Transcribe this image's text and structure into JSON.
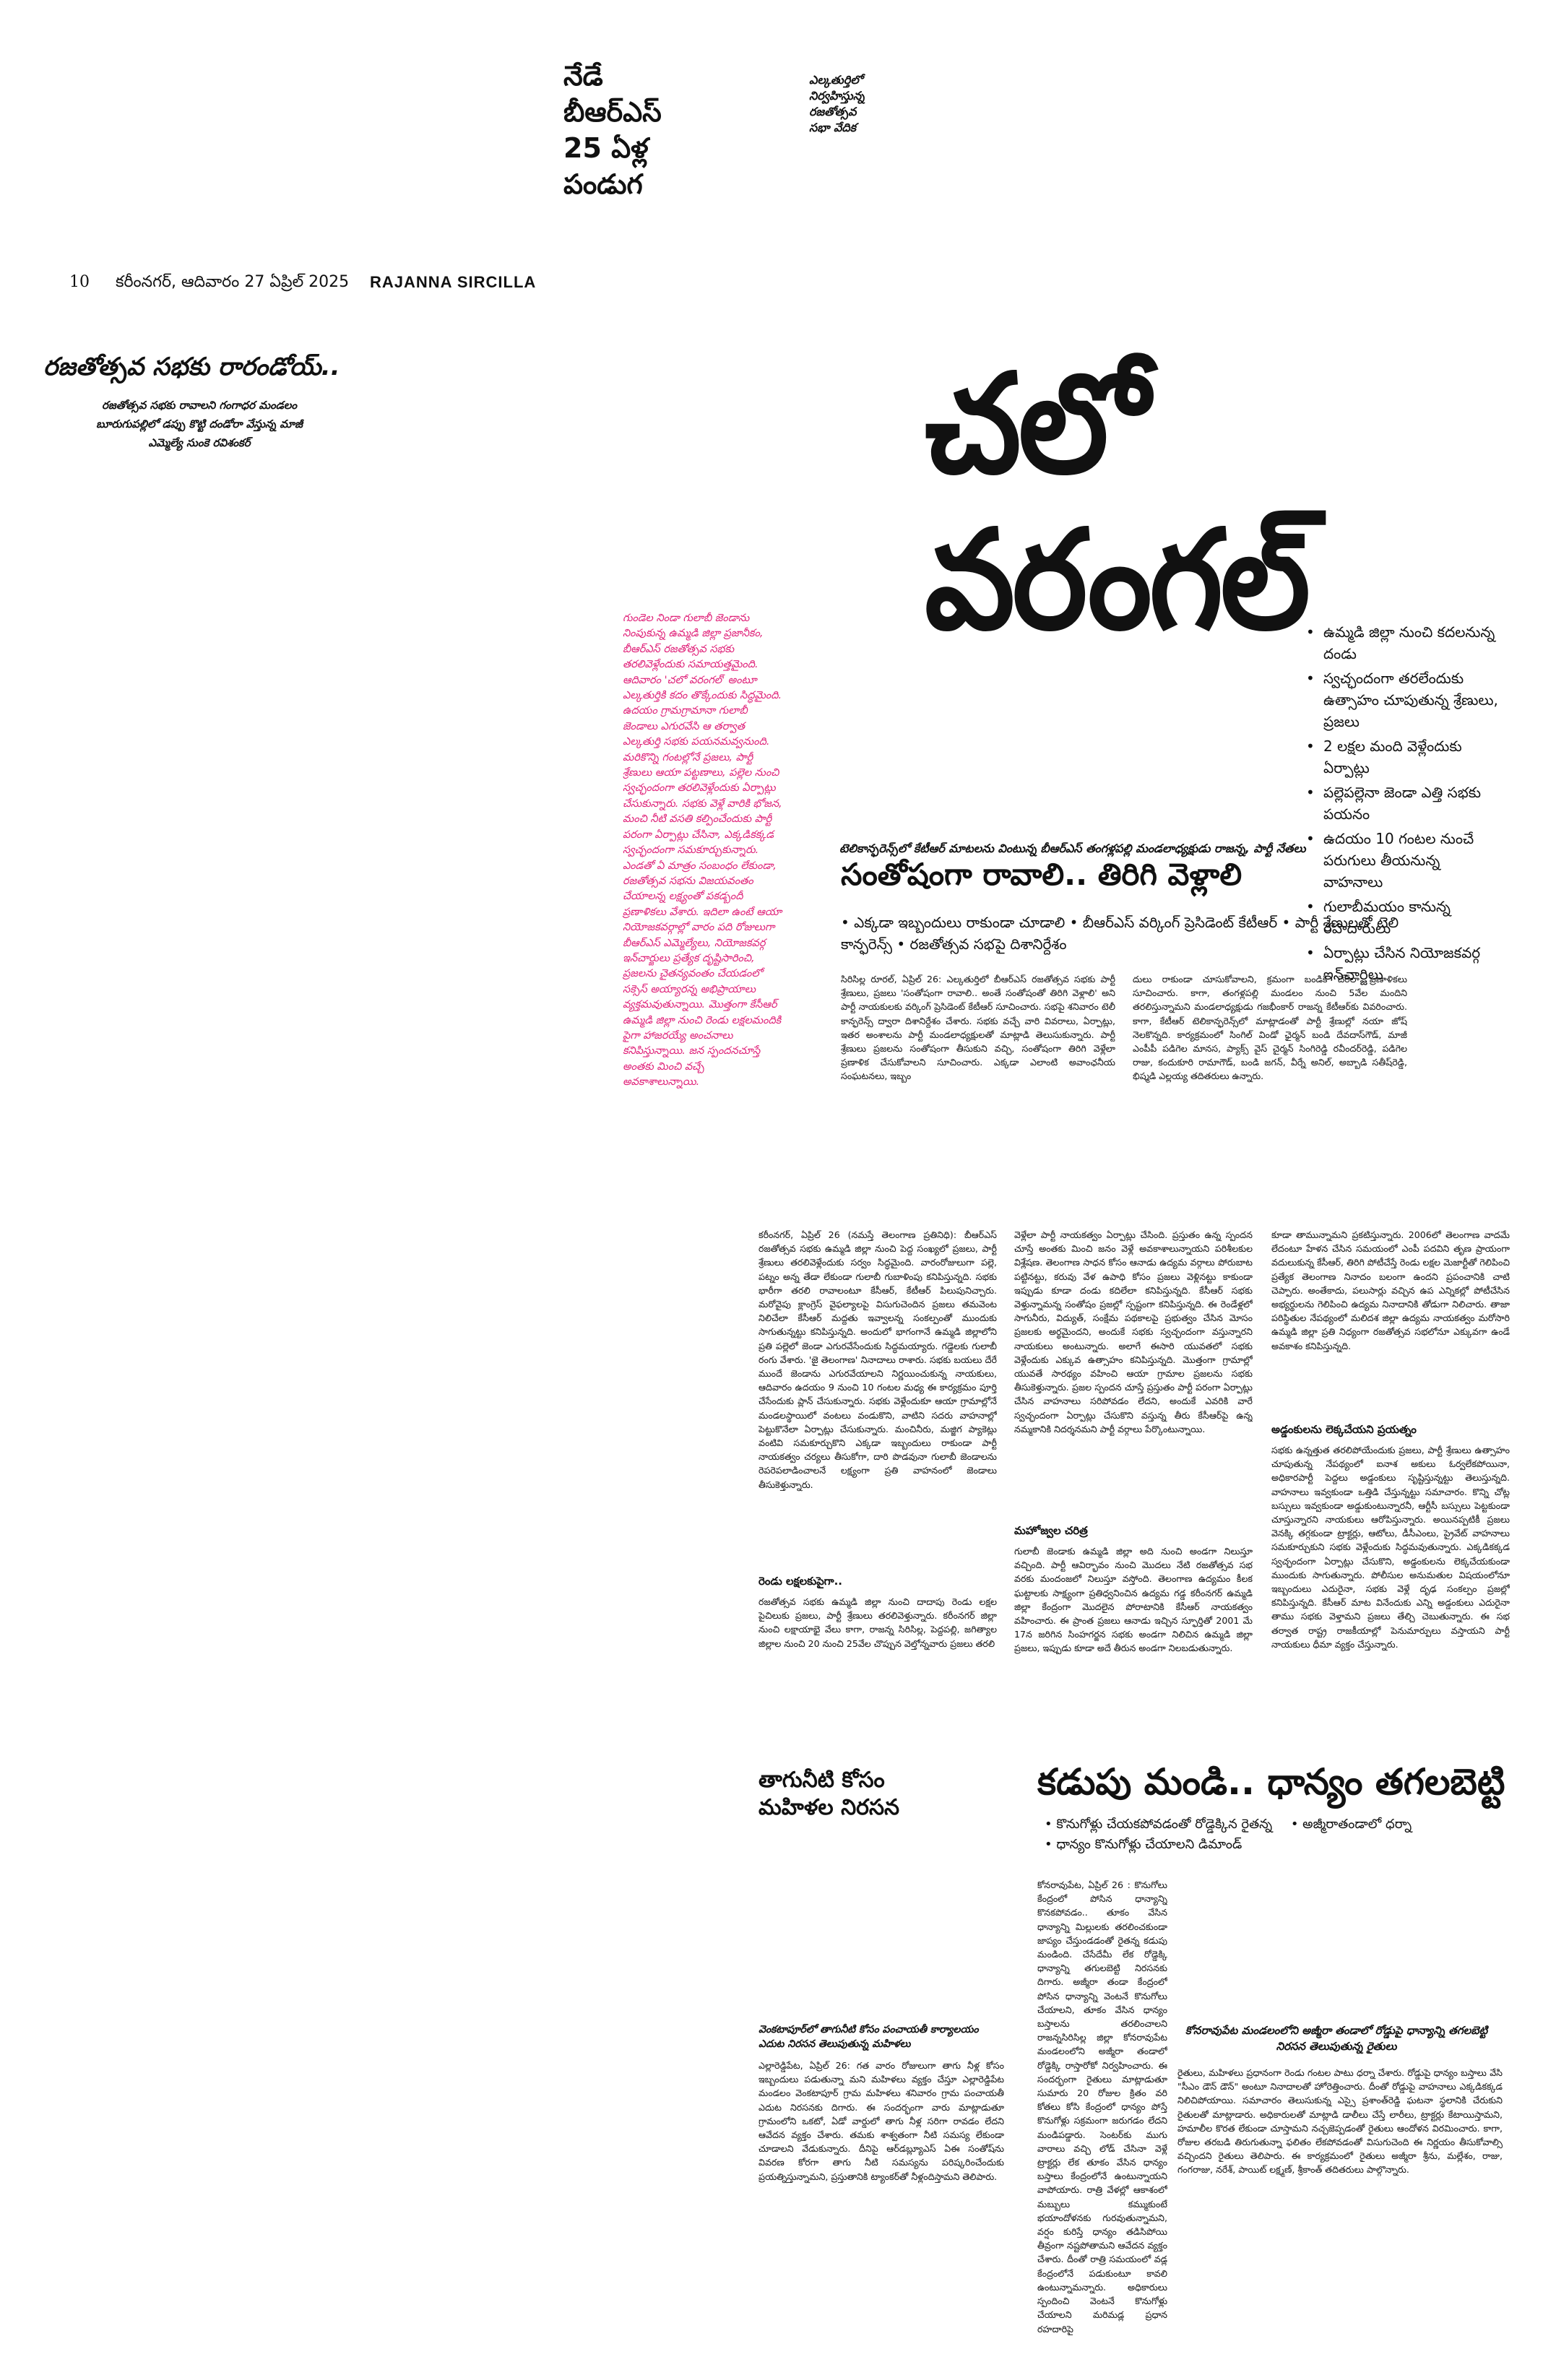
{
  "promo": {
    "line1": "నేడే",
    "line2": "బీఆర్ఎస్",
    "line3": "25 ఏళ్ల",
    "line4": "పండుగ",
    "small1": "ఎల్కతుర్తిలో",
    "small2": "నిర్వహిస్తున్న",
    "small3": "రజతోత్సవ",
    "small4": "సభా వేదిక"
  },
  "folio": {
    "page": "10",
    "dateline": "కరీంనగర్, ఆదివారం 27 ఏప్రిల్ 2025",
    "edition": "RAJANNA SIRCILLA"
  },
  "kicker": {
    "title": "రజతోత్సవ సభకు రారండోయ్..",
    "sub1": "రజతోత్సవ సభకు రావాలని గంగాధర మండలం",
    "sub2": "బూరుగుపల్లిలో డప్పు కొట్టి దండోరా వేస్తున్న మాజీ",
    "sub3": "ఎమ్మెల్యే సుంకె రవిశంకర్"
  },
  "masthead": "చలో వరంగల్",
  "pink_caption": "గుండెల నిండా గులాబీ జెండాను నింపుకున్న ఉమ్మడి జిల్లా ప్రజానీకం, బీఆర్ఎస్ రజతోత్సవ సభకు తరలివెళ్లేందుకు సమాయత్తమైంది. ఆదివారం 'చలో వరంగల్' అంటూ ఎల్కతుర్తికి కదం తొక్కేందుకు సిద్ధమైంది. ఉదయం గ్రామగ్రామానా గులాబీ జెండాలు ఎగురవేసి ఆ తర్వాత ఎల్కతుర్తి సభకు పయనమవ్వనుంది. మరికొన్ని గంటల్లోనే ప్రజలు, పార్టీ శ్రేణులు ఆయా పట్టణాలు, పల్లెల నుంచి స్వచ్ఛందంగా తరలివెళ్లేందుకు ఏర్పాట్లు చేసుకున్నారు. సభకు వెళ్లే వారికి భోజన, మంచి నీటి వసతి కల్పించేందుకు పార్టీ పరంగా ఏర్పాట్లు చేసినా, ఎక్కడికక్కడ స్వచ్ఛందంగా సమకూర్చుకున్నారు. ఎండతో ఏ మాత్రం సంబంధం లేకుండా, రజతోత్సవ సభను విజయవంతం చేయాలన్న లక్ష్యంతో పకడ్బందీ ప్రణాళికలు వేశారు. ఇదిలా ఉంటే ఆయా నియోజకవర్గాల్లో వారం పది రోజులుగా బీఆర్ఎస్ ఎమ్మెల్యేలు, నియోజకవర్గ ఇన్‌చార్జులు ప్రత్యేక దృష్టిసారించి, ప్రజలను చైతన్యవంతం చేయడంలో సక్సెస్ అయ్యారన్న అభిప్రాయాలు వ్యక్తమవుతున్నాయి. మొత్తంగా కేసీఆర్ ఉమ్మడి జిల్లా నుంచి రెండు లక్షలమందికి పైగా హాజరయ్యే అంచనాలు కనిపిస్తున్నాయి. జన స్పందనచూస్తే అంతకు మించి వచ్చే అవకాశాలున్నాయి.",
  "right_bullets": [
    "ఉమ్మడి జిల్లా నుంచి కదలనున్న దండు",
    "స్వచ్ఛందంగా తరలేందుకు ఉత్సాహం చూపుతున్న శ్రేణులు, ప్రజలు",
    "2 లక్షల మంది వెళ్లేందుకు ఏర్పాట్లు",
    "పల్లెపల్లెనా జెండా ఎత్తి సభకు పయనం",
    "ఉదయం 10 గంటల నుంచే పరుగులు తీయనున్న వాహనాలు",
    "గులాబీమయం కానున్న రహదారులు",
    "ఏర్పాట్లు చేసిన నియోజకవర్గ ఇన్‌చార్జిలు"
  ],
  "story1": {
    "kicker": "టెలికాన్ఫరెన్స్‌లో కేటీఆర్ మాటలను వింటున్న బీఆర్ఎస్ తంగళ్లపల్లి మండలాధ్యక్షుడు రాజన్న, పార్టీ నేతలు",
    "headline": "సంతోషంగా రావాలి.. తిరిగి వెళ్లాలి",
    "bullets": [
      "ఎక్కడా ఇబ్బందులు రాకుండా చూడాలి",
      "బీఆర్ఎస్ వర్కింగ్ ప్రెసిడెంట్ కేటీఆర్",
      "పార్టీ శ్రేణులతో టెలి కాన్ఫరెన్స్",
      "రజతోత్సవ సభపై దిశానిర్దేశం"
    ],
    "col1": "సిరిసిల్ల రూరల్, ఏప్రిల్ 26: ఎల్కతుర్తిలో బీఆర్ఎస్ రజతోత్సవ సభకు పార్టీ శ్రేణులు, ప్రజలు 'సంతోషంగా రావాలి.. అంతే సంతోషంతో తిరిగి వెళ్లాలి' అని పార్టీ నాయకులకు వర్కింగ్ ప్రెసిడెంట్ కేటీఆర్ సూచించారు. సభపై శనివారం టెలీ కాన్ఫరెన్స్ ద్వారా దిశానిర్దేశం చేశారు. సభకు వచ్చే వారి వివరాలు, ఏర్పాట్లు, ఇతర అంశాలను పార్టీ మండలాధ్యక్షులతో మాట్లాడి తెలుసుకున్నారు. పార్టీ శ్రేణులు ప్రజలను సంతోషంగా తీసుకుని వచ్చి, సంతోషంగా తిరిగి వెళ్లేలా ప్రణాళిక చేసుకోవాలని సూచించారు. ఎక్కడా ఎలాంటి అవాంఛనీయ సంఘటనలు, ఇబ్బం",
    "col2": "దులు రాకుండా చూసుకోవాలని, క్రమంగా బండికి చేరేలా ప్రణాళికలు సూచించారు. కాగా, తంగళ్లపల్లి మండలం నుంచి 5వేల మందిని తరలిస్తున్నామని మండలాధ్యక్షుడు గజభీంకార్ రాజన్న కేటీఆర్‌కు వివరించారు. కాగా, కేటీఆర్ టెలికాన్ఫరెన్స్‌లో మాట్లాడంతో పార్టీ శ్రేణుల్లో నయా జోష్ నెలకొన్నది. కార్యక్రమంలో సింగిల్ విండో ఛైర్మన్ బండి దేవదాస్‌గౌడ్, మాజీ ఎంపీపీ పడిగెల మానస, ప్యాక్స్ వైస్ చైర్మన్ సింగిరెడ్డి రవీందర్‌రెడ్డి, పడిగెల రాజు, కందుకూరి రామాగౌడ్, బండి జగన్, వీర్నే అనిల్, అబ్బాడి సతీష్‌రెడ్డి, భిష్మడి ఎల్లయ్య తదితరులు ఉన్నారు."
  },
  "main": {
    "col1": "కరీంనగర్, ఏప్రిల్ 26 (నమస్తే తెలంగాణ ప్రతినిధి): బీఆర్ఎస్ రజతోత్సవ సభకు ఉమ్మడి జిల్లా నుంచి పెద్ద సంఖ్యలో ప్రజలు, పార్టీ శ్రేణులు తరలివెళ్లేందుకు సర్వం సిద్ధమైంది. వారంరోజులుగా పల్లె, పట్నం అన్న తేడా లేకుండా గులాబీ గుబాళింపు కనిపిస్తున్నది. సభకు భారీగా తరలి రావాలంటూ కేసీఆర్, కేటీఆర్ పిలుపునిచ్చారు. మరోవైపు క్లాంగ్రెస్ వైఫల్యాలపై విసుగుచెందిన ప్రజలు తమవెంట నిలిచేలా కేసీఆర్ మద్దతు ఇవ్వాలన్న సంకల్పంతో ముందుకు సాగుతున్నట్టు కనిపిస్తున్నది. అందులో భాగంగానే ఉమ్మడి జిల్లాలోని ప్రతి పల్లెలో జెండా ఎగురవేసేందుకు సిద్ధమయ్యారు. గడ్డెలకు గులాబీ రంగు వేశారు. 'జై తెలంగాణ' నినాదాలు రాశారు. సభకు బయలు దేరే ముందే జెండాను ఎగురవేయాలని నిర్ణయించుకున్న నాయకులు, ఆదివారం ఉదయం 9 నుంచి 10 గంటల మధ్య ఈ కార్యక్రమం పూర్తి చేసేందుకు ప్లాన్ చేసుకున్నారు. సభకు వెళ్లేందుకూ ఆయా గ్రామాల్లోనే మండలస్థాయిలో వంటలు వండుకొని, వాటిని సదరు వాహనాల్లో పెట్టుకొనేలా ఏర్పాట్లు చేసుకున్నారు. మంచినీరు, మజ్జిగ ప్యాకెట్లు వంటివి సమకూర్చుకొని ఎక్కడా ఇబ్బందులు రాకుండా పార్టీ నాయకత్వం చర్యలు తీసుకోగా, దారి పొడవునా గులాబీ జెండాలను రెపరెపలాడించాలనే లక్ష్యంగా ప్రతి వాహనంలో జెండాలు తీసుకెళ్తున్నారు.",
    "sub1": "రెండు లక్షలకుపైగా..",
    "col1b": "రజతోత్సవ సభకు ఉమ్మడి జిల్లా నుంచి దాదాపు రెండు లక్షల పైచిలుకు ప్రజలు, పార్టీ శ్రేణులు తరలివెళ్తున్నారు. కరీంనగర్ జిల్లా నుంచి లక్షాయాభై వేలు కాగా, రాజన్న సిరిసిల్ల, పెద్దపల్లి, జగిత్యాల జిల్లాల నుంచి 20 నుంచి 25వేల చొప్పున వెల్తోన్నవారు ప్రజలు తరలి",
    "col2": "వెళ్లేలా పార్టీ నాయకత్వం ఏర్పాట్లు చేసింది. ప్రస్తుతం ఉన్న స్పందన చూస్తే అంతకు మించి జనం వెళ్లే అవకాశాలున్నాయని పరిశీలకుల విశ్లేషణ. తెలంగాణ సాధన కోసం ఆనాడు ఉద్యమ వర్గాలు పోరుబాట పట్టినట్టు, కరువు వేళ ఉపాధి కోసం ప్రజలు వెళ్లినట్టు కాకుండా ఇప్పుడు కూడా దండు కదిలేలా కనిపిస్తున్నది. కేసీఆర్ సభకు వెళ్తున్నామన్న సంతోషం ప్రజల్లో స్పష్టంగా కనిపిస్తున్నది. ఈ రెండేళ్లలో సాగునీరు, విద్యుత్, సంక్షేమ పథకాలపై ప్రభుత్వం చేసిన మోసం ప్రజలకు అర్థమైందని, అందుకే సభకు స్వచ్ఛందంగా వస్తున్నారని నాయకులు అంటున్నారు. అలాగే ఈసారి యువతలో సభకు వెళ్లేందుకు ఎక్కువ ఉత్సాహం కనిపిస్తున్నది. మొత్తంగా గ్రామాల్లో యువతే సారథ్యం వహించి ఆయా గ్రామాల ప్రజలను సభకు తీసుకెళ్తున్నారు. ప్రజల స్పందన చూస్తే ప్రస్తుతం పార్టీ పరంగా ఏర్పాట్లు చేసిన వాహనాలు సరిపోవడం లేదని, అందుకే ఎవరికి వారే స్వచ్ఛందంగా ఏర్పాట్లు చేసుకొని వస్తున్న తీరు కేసీఆర్‌పై ఉన్న నమ్మకానికి నిదర్శనమని పార్టీ వర్గాలు పేర్కొంటున్నాయి.",
    "sub2": "మహోజ్వల చరిత్ర",
    "col2b": "గులాబీ జెండాకు ఉమ్మడి జిల్లా అది నుంచి అండగా నిలుస్తూ వచ్చింది. పార్టీ ఆవిర్భావం నుంచి మొదలు నేటి రజతోత్సవ సభ వరకు మందంజలో నిలుస్తూ వస్తోంది. తెలంగాణ ఉద్యమం కీలక ఘట్టాలకు సాక్ష్యంగా ప్రతిధ్వనించిన ఉద్యమ గడ్డ కరీంనగర్ ఉమ్మడి జిల్లా కేంద్రంగా మొదలైన పోరాటానికి కేసీఆర్ నాయకత్వం వహించారు. ఈ ప్రాంత ప్రజలు ఆనాడు ఇచ్చిన స్ఫూర్తితో 2001 మే 17న జరిగిన సింహగర్జన సభకు అండగా నిలిచిన ఉమ్మడి జిల్లా ప్రజలు, ఇప్పుడు కూడా అదే తీరున అండగా నిలబడుతున్నారు.",
    "col3": "కూడా తామున్నామని ప్రకటిస్తున్నారు. 2006లో తెలంగాణ వాదమే లేదంటూ హేళన చేసిన సమయంలో ఎంపీ పదవిని తృణ ప్రాయంగా వదులుకున్న కేసీఆర్, తిరిగి పోటీచేస్తే రెండు లక్షల మెజార్టీతో గెలిపించి ప్రత్యేక తెలంగాణ నినాదం బలంగా ఉందని ప్రపంచానికి చాటి చెప్పారు. అంతేకాదు, పలుసార్లు వచ్చిన ఉప ఎన్నికల్లో పోటీచేసిన అభ్యర్థులను గెలిపించి ఉద్యమ నినాదానికి తోడుగా నిలిచారు. తాజా పరిస్థితుల నేపథ్యంలో మలిదశ జిల్లా ఉద్యమ నాయకత్వం మరోసారి ఉమ్మడి జిల్లా ప్రతి నిధ్యంగా రజతోత్సవ సభలోనూ ఎక్కువగా ఉండే అవకాశం కనిపిస్తున్నది.",
    "sub3": "అడ్డంకులను లెక్కచేయని ప్రయత్నం",
    "col3b": "సభకు ఉన్నత్తుత తరలిపోయేందుకు ప్రజలు, పార్టీ శ్రేణులు ఉత్సాహం చూపుతున్న నేపథ్యంలో ఐనాశ అకులు ఓర్వలేకపోయినా, అధికారపార్టీ పెద్దలు అడ్డంకులు సృష్టిస్తున్నట్టు తెలుస్తున్నది. వాహనాలు ఇవ్వకుండా ఒత్తిడి చేస్తున్నట్టు సమాచారం. కొన్ని చోట్ల బస్సులు ఇవ్వకుండా అడ్డుకుంటున్నారనీ, ఆర్టీసీ బస్సులు పెట్టకుండా చూస్తున్నారని నాయకులు ఆరోపిస్తున్నారు. అయినప్పటికీ ప్రజలు వెనక్కి తగ్గకుండా ట్రాక్టర్లు, ఆటోలు, డీసీఎంలు, ప్రైవేట్ వాహనాలు సమకూర్చుకుని సభకు వెళ్లేందుకు సిద్ధమవుతున్నారు. ఎక్కడికక్కడ స్వచ్ఛందంగా ఏర్పాట్లు చేసుకొని, అడ్డంకులను లెక్కచేయకుండా ముందుకు సాగుతున్నారు. పోలీసుల అనుమతుల విషయంలోనూ ఇబ్బందులు ఎదురైనా, సభకు వెళ్లే దృఢ సంకల్పం ప్రజల్లో కనిపిస్తున్నది. కేసీఆర్ మాట వినేందుకు ఎన్ని అడ్డంకులు ఎదురైనా తాము సభకు వెళ్తామని ప్రజలు తేల్చి చెబుతున్నారు. ఈ సభ తర్వాత రాష్ట్ర రాజకీయాల్లో పెనుమార్పులు వస్తాయని పార్టీ నాయకులు ధీమా వ్యక్తం చేస్తున్నారు."
  },
  "story2": {
    "headline": "కడుపు మండి.. ధాన్యం తగలబెట్టి",
    "bullets": [
      "కొనుగోళ్లు చేయకపోవడంతో రోడ్డెక్కిన రైతన్న",
      "అజ్మీరాతండాలో ధర్నా",
      "ధాన్యం కొనుగోళ్లు చేయాలని డిమాండ్"
    ],
    "col1": "కోనరావుపేట, ఏప్రిల్ 26 : కొనుగోలు కేంద్రంలో పోసిన ధాన్యాన్ని కొనకపోవడం.. తూకం వేసిన ధాన్యాన్ని మిల్లులకు తరలించకుండా జాప్యం చేస్తుండడంతో రైతన్న కడుపు మండింది. చేసేదేమీ లేక రోడ్డెక్కి ధాన్యాన్ని తగులబెట్టి నిరసనకు దిగారు. అజ్మీరా తండా కేంద్రంలో పోసిన ధాన్యాన్ని వెంటనే కొనుగోలు చేయాలని, తూకం వేసిన ధాన్యం బస్తాలను తరలించాలని రాజన్నసిరిసిల్ల జిల్లా కోనరావుపేట మండలంలోని అజ్మీరా తండాలో రోడ్డెక్కి రాస్తారోకో నిర్వహించారు. ఈ సందర్భంగా రైతులు మాట్లాడుతూ సుమారు 20 రోజుల క్రితం వరి కోతలు కోసి కేంద్రంలో ధాన్యం పోస్తే కొనుగోళ్లు సక్రమంగా జరుగడం లేదని మండిపడ్డారు. సెంటర్‌కు ముగు వారాలు వచ్చి లోడ్ చేసినా వెళ్లే ట్రాక్టర్లు లేక తూకం వేసిన ధాన్యం బస్తాలు కేంద్రంలోనే ఉంటున్నాయని వాపోయారు. రాత్రి వేళల్లో ఆకాశంలో మబ్బులు కమ్ముకుంటే భయాందోళనకు గురవుతున్నామని, వర్షం కురిస్తే ధాన్యం తడిసిపోయి తీవ్రంగా నష్టపోతామని ఆవేదన వ్యక్తం చేశారు. దీంతో రాత్రి సమయంలో వడ్ల కేంద్రంలోనే పడుకుంటూ కావలి ఉంటున్నామన్నారు. అధికారులు స్పందించి వెంటనే కొనుగోళ్లు చేయాలని మరిమడ్ల ప్రధాన రహదారిపై",
    "kicker": "కోనరావుపేట మండలంలోని అజ్మీరా తండాలో రోడ్డుపై ధాన్యాన్ని తగలబెట్టి నిరసన తెలుపుతున్న రైతులు",
    "col2": "రైతులు, మహిళలు ప్రధానంగా రెండు గంటల పాటు ధర్నా చేశారు. రోడ్డుపై ధాన్యం బస్తాలు వేసి \"సీఎం డౌన్ డౌన్\" అంటూ నినాదాలతో హోరెత్తించారు. దీంతో రోడ్డుపై వాహనాలు ఎక్కడికక్కడ నిలిచిపోయాయి. సమాచారం తెలుసుకున్న ఎస్సై ప్రశాంత్‌రెడ్డి ఘటనా స్థలానికి చేరుకుని రైతులతో మాట్లాడారు. అధికారులతో మాట్లాడి డాలీలు చేస్తే లారీలు, ట్రాక్టర్లు కేటాయిస్తామని, హమాలీల కొరత లేకుండా చూస్తామని నచ్చజెప్పడంతో రైతులు ఆందోళన విరమించారు. కాగా, రోజుల తరబడి తిరుగుతున్నా ఫలితం లేకపోవడంతో విసుగుచెంది ఈ నిర్ణయం తీసుకోవాల్సి వచ్చిందని రైతులు తెలిపారు. ఈ కార్యక్రమంలో రైతులు అజ్మీరా శ్రీను, మల్లేశం, రాజు, గంగరాజు, నరేశ్, పాయిట్ లక్ష్మణ్, శ్రీకాంత్ తదితరులు పాల్గొన్నారు."
  },
  "story3": {
    "headline1": "తాగునీటి కోసం",
    "headline2": "మహిళల నిరసన",
    "kicker": "వెంకటాపూర్‌లో తాగునీటి కోసం పంచాయతీ కార్యాలయం ఎదుట నిరసన తెలుపుతున్న మహిళలు",
    "body": "ఎల్లారెడ్డిపేట, ఏప్రిల్ 26: గత వారం రోజులుగా తాగు నీళ్ల కోసం ఇబ్బందులు పడుతున్నా మని మహిళలు వ్యక్తం చేస్తూ ఎల్లారెడ్డిపేట మండలం వెంకటాపూర్ గ్రామ మహిళలు శనివారం గ్రామ పంచాయతీ ఎదుట నిరసనకు దిగారు. ఈ సందర్భంగా వారు మాట్లాడుతూ గ్రామంలోని ఒకటో, ఏడో వార్డులో తాగు నీళ్ల సరిగా రావడం లేదని ఆవేదన వ్యక్తం చేశారు. తమకు శాశ్వతంగా నీటి సమస్య లేకుండా చూడాలని వేడుకున్నారు. దీనిపై ఆర్‌డబ్ల్యూఎస్ ఏఈ సంతోష్‌ను వివరణ కోరగా తాగు నీటి సమస్యను పరిష్కరించేందుకు ప్రయత్నిస్తున్నామని, ప్రస్తుతానికి ట్యాంకర్‌తో నీళ్లందిస్తామని తెలిపారు."
  }
}
